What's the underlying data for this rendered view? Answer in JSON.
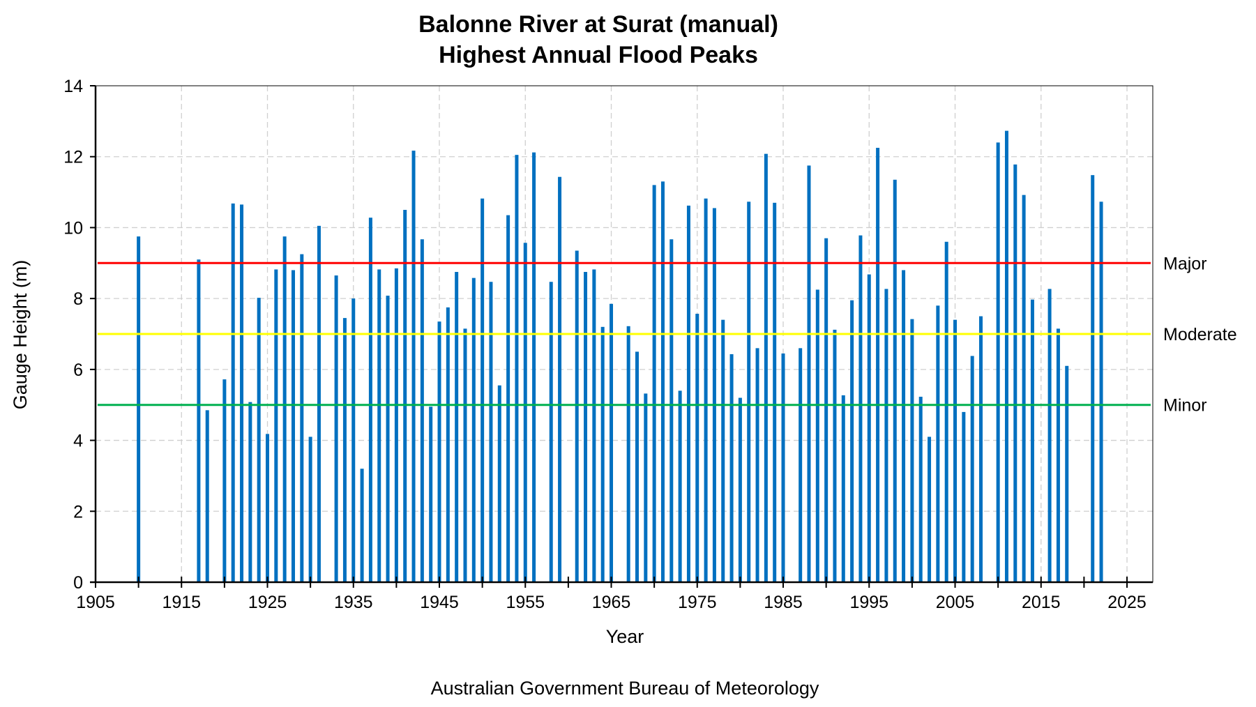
{
  "chart_data": {
    "type": "bar",
    "title": "Balonne River at Surat (manual)",
    "subtitle": "Highest Annual Flood Peaks",
    "xlabel": "Year",
    "ylabel": "Gauge Height (m)",
    "credit": "Australian Government Bureau of Meteorology",
    "xlim": [
      1905,
      2028
    ],
    "ylim": [
      0,
      14
    ],
    "xticks": [
      1905,
      1915,
      1925,
      1935,
      1945,
      1955,
      1965,
      1975,
      1985,
      1995,
      2005,
      2015,
      2025
    ],
    "yticks": [
      0,
      2,
      4,
      6,
      8,
      10,
      12,
      14
    ],
    "grid": true,
    "bar_color": "#0070C0",
    "thresholds": [
      {
        "name": "Major",
        "value": 9,
        "color": "#FF0000"
      },
      {
        "name": "Moderate",
        "value": 7,
        "color": "#FFFF00"
      },
      {
        "name": "Minor",
        "value": 5,
        "color": "#00B050"
      }
    ],
    "x": [
      1910,
      1917,
      1918,
      1920,
      1921,
      1922,
      1923,
      1924,
      1925,
      1926,
      1927,
      1928,
      1929,
      1930,
      1931,
      1933,
      1934,
      1935,
      1936,
      1937,
      1938,
      1939,
      1940,
      1941,
      1942,
      1943,
      1944,
      1945,
      1946,
      1947,
      1948,
      1949,
      1950,
      1951,
      1952,
      1953,
      1954,
      1955,
      1956,
      1958,
      1959,
      1961,
      1962,
      1963,
      1964,
      1965,
      1967,
      1968,
      1969,
      1970,
      1971,
      1972,
      1973,
      1974,
      1975,
      1976,
      1977,
      1978,
      1979,
      1980,
      1981,
      1982,
      1983,
      1984,
      1985,
      1987,
      1988,
      1989,
      1990,
      1991,
      1992,
      1993,
      1994,
      1995,
      1996,
      1997,
      1998,
      1999,
      2000,
      2001,
      2002,
      2003,
      2004,
      2005,
      2006,
      2007,
      2008,
      2010,
      2011,
      2012,
      2013,
      2014,
      2016,
      2017,
      2018,
      2021,
      2022
    ],
    "values": [
      9.75,
      9.1,
      4.85,
      5.72,
      10.68,
      10.65,
      5.08,
      8.02,
      4.18,
      8.82,
      9.75,
      8.8,
      9.25,
      4.1,
      10.05,
      8.65,
      7.45,
      8.0,
      3.2,
      10.28,
      8.82,
      8.08,
      8.85,
      10.5,
      12.17,
      9.67,
      4.95,
      7.35,
      7.75,
      8.75,
      7.15,
      8.58,
      10.82,
      8.47,
      5.55,
      10.35,
      12.05,
      9.57,
      12.12,
      8.47,
      11.43,
      9.35,
      8.75,
      8.82,
      7.2,
      7.85,
      7.22,
      6.5,
      5.32,
      11.2,
      11.3,
      9.67,
      5.4,
      10.62,
      7.57,
      10.82,
      10.55,
      7.4,
      6.43,
      5.2,
      10.73,
      6.6,
      12.08,
      10.7,
      6.45,
      6.6,
      11.75,
      8.25,
      9.7,
      7.12,
      5.27,
      7.95,
      9.78,
      8.68,
      12.25,
      8.27,
      11.35,
      8.8,
      7.42,
      5.23,
      4.1,
      7.8,
      9.6,
      7.4,
      4.8,
      6.38,
      7.5,
      12.4,
      12.73,
      11.78,
      10.92,
      7.97,
      8.27,
      7.15,
      6.1,
      11.48,
      10.73
    ]
  }
}
